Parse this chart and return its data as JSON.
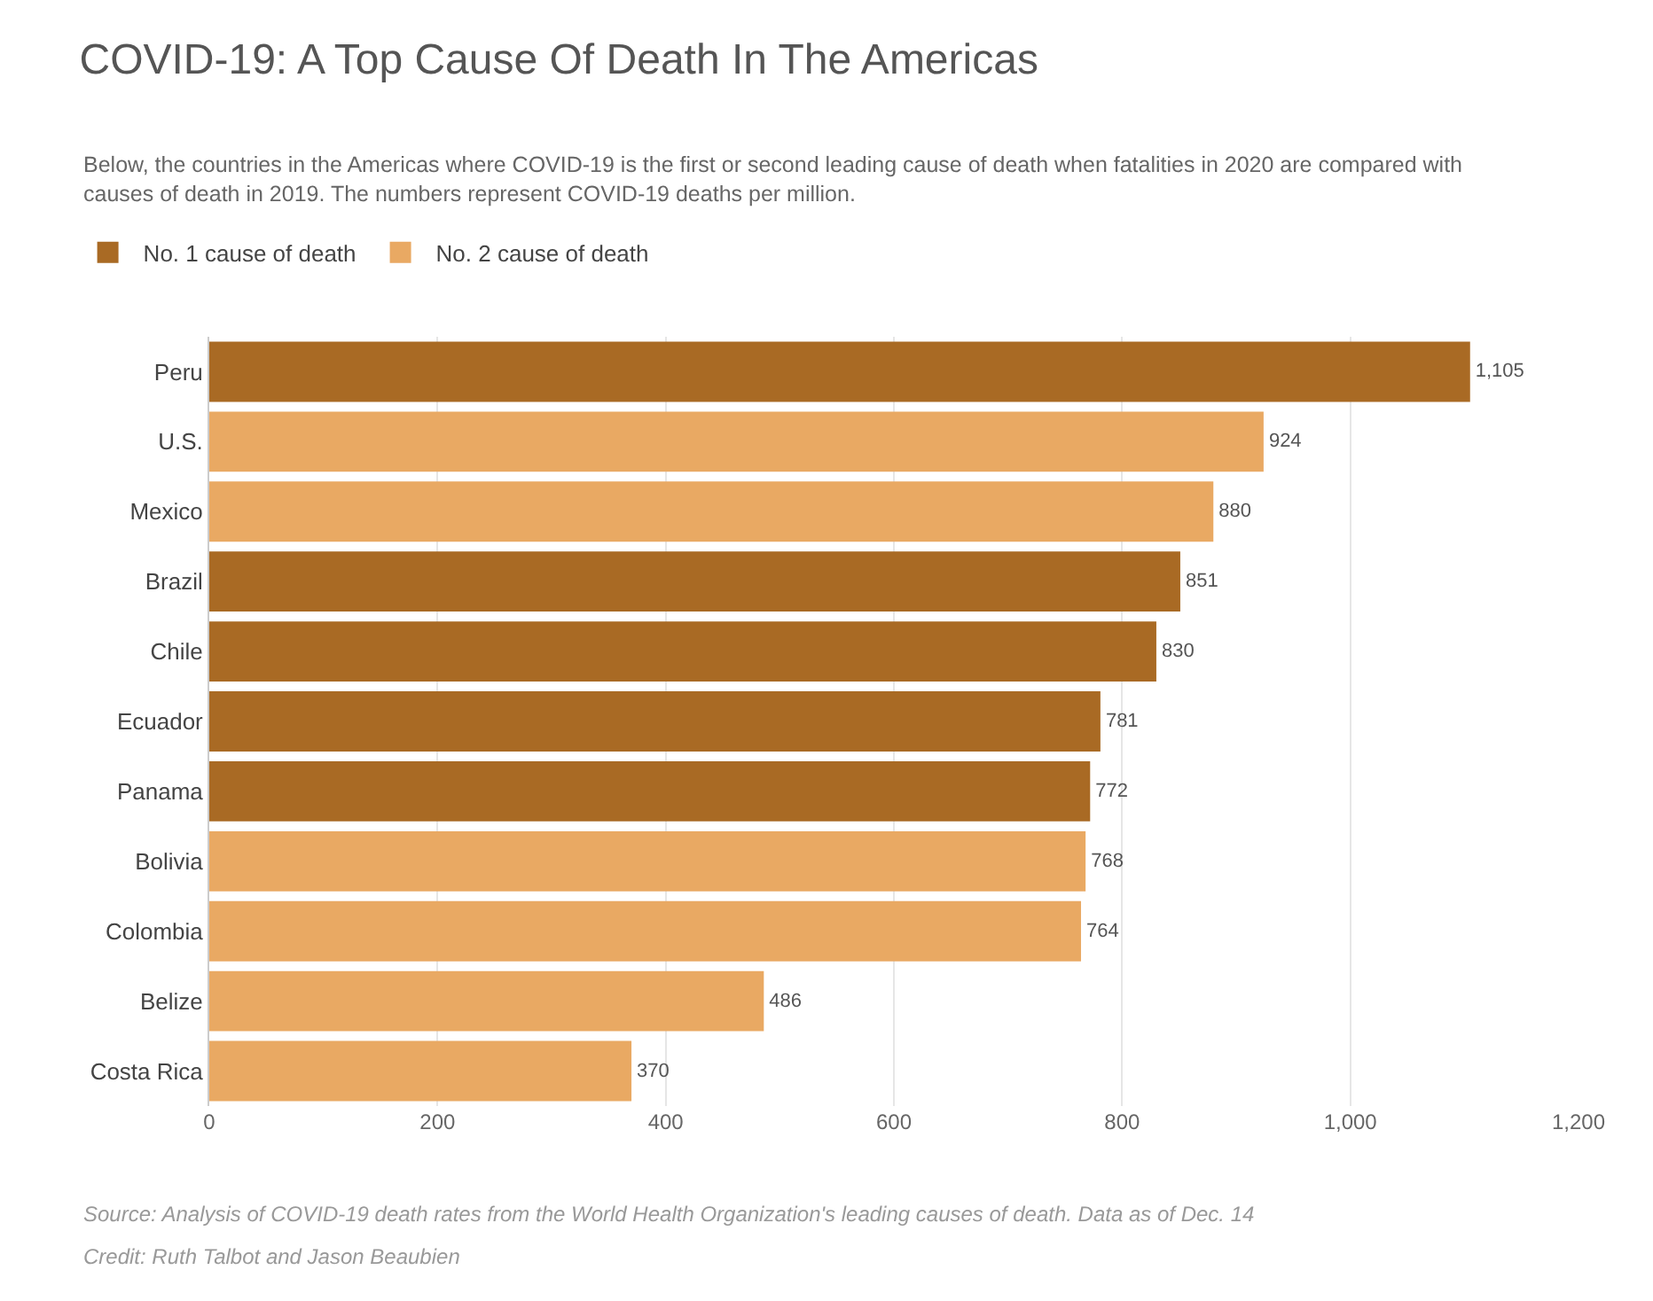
{
  "chart_data": {
    "type": "bar",
    "orientation": "horizontal",
    "title": "COVID-19: A Top Cause Of Death In The Americas",
    "subtitle": "Below, the countries in the Americas where COVID-19 is the first or second leading cause of death when fatalities in 2020 are compared with causes of death in 2019. The numbers represent COVID-19 deaths per million.",
    "categories": [
      "Peru",
      "U.S.",
      "Mexico",
      "Brazil",
      "Chile",
      "Ecuador",
      "Panama",
      "Bolivia",
      "Colombia",
      "Belize",
      "Costa Rica"
    ],
    "series": [
      {
        "name": "No. 1 cause of death",
        "color": "#a96a24",
        "values": [
          1105,
          null,
          null,
          851,
          830,
          781,
          772,
          null,
          null,
          null,
          null
        ],
        "value_labels": [
          "1,105",
          null,
          null,
          "851",
          "830",
          "781",
          "772",
          null,
          null,
          null,
          null
        ]
      },
      {
        "name": "No. 2 cause of death",
        "color": "#e9a963",
        "values": [
          null,
          924,
          880,
          null,
          null,
          null,
          null,
          768,
          764,
          486,
          370
        ],
        "value_labels": [
          null,
          "924",
          "880",
          null,
          null,
          null,
          null,
          "768",
          "764",
          "486",
          "370"
        ]
      }
    ],
    "xlim": [
      0,
      1200
    ],
    "xticks": [
      0,
      200,
      400,
      600,
      800,
      {
        "value": 1000,
        "label": "1,000"
      },
      {
        "value": 1200,
        "label": "1,200"
      }
    ],
    "grid": "x",
    "legend": "top left",
    "annotations": [
      "Source: Analysis of COVID-19 death rates from the World Health Organization's leading causes of death. Data as of Dec. 14",
      "Credit: Ruth Talbot and Jason Beaubien"
    ]
  }
}
